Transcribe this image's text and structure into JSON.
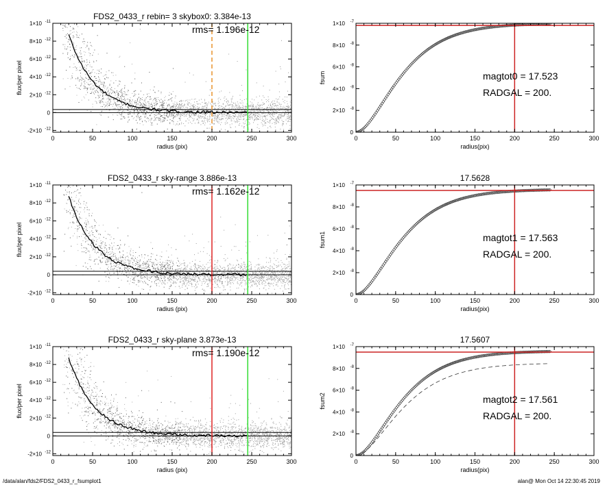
{
  "footer": {
    "path": "/data/alan/fds2/FDS2_0433_r_fsumplot1",
    "stamp": "alan@  Mon Oct 14 22:30:45 2019"
  },
  "chart_data": [
    {
      "type": "scatter",
      "title": "FDS2_0433_r rebin= 3    skybox0:  3.384e-13",
      "annotation": "rms= 1.196e-12",
      "xlabel": "radius (pix)",
      "ylabel": "flux/per pixel",
      "xlim": [
        0,
        300
      ],
      "ylim": [
        -2.2e-12,
        1e-11
      ],
      "xticks": [
        0,
        50,
        100,
        150,
        200,
        250,
        300
      ],
      "yticks": [
        {
          "v": 1e-11,
          "label": "1×10",
          "exp": "-11"
        },
        {
          "v": 8e-12,
          "label": "8×10",
          "exp": "-12"
        },
        {
          "v": 6e-12,
          "label": "6×10",
          "exp": "-12"
        },
        {
          "v": 4e-12,
          "label": "4×10",
          "exp": "-12"
        },
        {
          "v": 2e-12,
          "label": "2×10",
          "exp": "-12"
        },
        {
          "v": 0,
          "label": "0",
          "exp": ""
        },
        {
          "v": -2e-12,
          "label": "-2×10",
          "exp": "-12"
        }
      ],
      "profile_amplitude": 1.6e-11,
      "profile_scale": 33,
      "rms": 1.196e-12,
      "hlines": [
        0,
        3.384e-13
      ],
      "vlines": [
        {
          "x": 200,
          "color": "#e8922a",
          "dashed": true
        },
        {
          "x": 245,
          "color": "#33dd33",
          "dashed": false
        }
      ]
    },
    {
      "type": "line",
      "title": "",
      "text_lines": [
        "magtot0 =  17.523",
        "RADGAL =    200."
      ],
      "xlabel": "radius(pix)",
      "ylabel": "fsum",
      "xlim": [
        0,
        300
      ],
      "ylim": [
        0,
        1e-07
      ],
      "xticks": [
        0,
        50,
        100,
        150,
        200,
        250,
        300
      ],
      "yticks": [
        {
          "v": 1e-07,
          "label": "1×10",
          "exp": "-7"
        },
        {
          "v": 8e-08,
          "label": "8×10",
          "exp": "-8"
        },
        {
          "v": 6e-08,
          "label": "6×10",
          "exp": "-8"
        },
        {
          "v": 4e-08,
          "label": "4×10",
          "exp": "-8"
        },
        {
          "v": 2e-08,
          "label": "2×10",
          "exp": "-8"
        },
        {
          "v": 0,
          "label": "0",
          "exp": ""
        }
      ],
      "growth_max": 1e-07,
      "growth_scale": 33,
      "hline": 9.8e-08,
      "vline": 200,
      "dashed_max": null
    },
    {
      "type": "scatter",
      "title": "FDS2_0433_r sky-range  3.886e-13",
      "annotation": "rms= 1.162e-12",
      "xlabel": "radius (pix)",
      "ylabel": "flux/per pixel",
      "xlim": [
        0,
        300
      ],
      "ylim": [
        -2.2e-12,
        1e-11
      ],
      "xticks": [
        0,
        50,
        100,
        150,
        200,
        250,
        300
      ],
      "yticks": [
        {
          "v": 1e-11,
          "label": "1×10",
          "exp": "-11"
        },
        {
          "v": 8e-12,
          "label": "8×10",
          "exp": "-12"
        },
        {
          "v": 6e-12,
          "label": "6×10",
          "exp": "-12"
        },
        {
          "v": 4e-12,
          "label": "4×10",
          "exp": "-12"
        },
        {
          "v": 2e-12,
          "label": "2×10",
          "exp": "-12"
        },
        {
          "v": 0,
          "label": "0",
          "exp": ""
        },
        {
          "v": -2e-12,
          "label": "-2×10",
          "exp": "-12"
        }
      ],
      "profile_amplitude": 1.6e-11,
      "profile_scale": 33,
      "rms": 1.162e-12,
      "hlines": [
        0,
        3.886e-13
      ],
      "vlines": [
        {
          "x": 200,
          "color": "#dd2222",
          "dashed": false
        },
        {
          "x": 245,
          "color": "#33dd33",
          "dashed": false
        }
      ]
    },
    {
      "type": "line",
      "title": "17.5628",
      "text_lines": [
        "magtot1 =  17.563",
        "RADGAL =    200."
      ],
      "xlabel": "radius(pix)",
      "ylabel": "fsum1",
      "xlim": [
        0,
        300
      ],
      "ylim": [
        0,
        1e-07
      ],
      "xticks": [
        0,
        50,
        100,
        150,
        200,
        250,
        300
      ],
      "yticks": [
        {
          "v": 1e-07,
          "label": "1×10",
          "exp": "-7"
        },
        {
          "v": 8e-08,
          "label": "8×10",
          "exp": "-8"
        },
        {
          "v": 6e-08,
          "label": "6×10",
          "exp": "-8"
        },
        {
          "v": 4e-08,
          "label": "4×10",
          "exp": "-8"
        },
        {
          "v": 2e-08,
          "label": "2×10",
          "exp": "-8"
        },
        {
          "v": 0,
          "label": "0",
          "exp": ""
        }
      ],
      "growth_max": 9.6e-08,
      "growth_scale": 33,
      "hline": 9.5e-08,
      "vline": 200,
      "dashed_max": null
    },
    {
      "type": "scatter",
      "title": "FDS2_0433_r sky-plane  3.873e-13",
      "annotation": "rms= 1.190e-12",
      "xlabel": "radius (pix)",
      "ylabel": "flux/per pixel",
      "xlim": [
        0,
        300
      ],
      "ylim": [
        -2.2e-12,
        1e-11
      ],
      "xticks": [
        0,
        50,
        100,
        150,
        200,
        250,
        300
      ],
      "yticks": [
        {
          "v": 1e-11,
          "label": "1×10",
          "exp": "-11"
        },
        {
          "v": 8e-12,
          "label": "8×10",
          "exp": "-12"
        },
        {
          "v": 6e-12,
          "label": "6×10",
          "exp": "-12"
        },
        {
          "v": 4e-12,
          "label": "4×10",
          "exp": "-12"
        },
        {
          "v": 2e-12,
          "label": "2×10",
          "exp": "-12"
        },
        {
          "v": 0,
          "label": "0",
          "exp": ""
        },
        {
          "v": -2e-12,
          "label": "-2×10",
          "exp": "-12"
        }
      ],
      "profile_amplitude": 1.6e-11,
      "profile_scale": 33,
      "rms": 1.19e-12,
      "hlines": [
        0,
        3.873e-13
      ],
      "vlines": [
        {
          "x": 200,
          "color": "#dd2222",
          "dashed": false
        },
        {
          "x": 245,
          "color": "#33dd33",
          "dashed": false
        }
      ]
    },
    {
      "type": "line",
      "title": "17.5607",
      "text_lines": [
        "magtot2 =  17.561",
        "RADGAL =    200."
      ],
      "xlabel": "radius(pix)",
      "ylabel": "fsum2",
      "xlim": [
        0,
        300
      ],
      "ylim": [
        0,
        1e-07
      ],
      "xticks": [
        0,
        50,
        100,
        150,
        200,
        250,
        300
      ],
      "yticks": [
        {
          "v": 1e-07,
          "label": "1×10",
          "exp": "-7"
        },
        {
          "v": 8e-08,
          "label": "8×10",
          "exp": "-8"
        },
        {
          "v": 6e-08,
          "label": "6×10",
          "exp": "-8"
        },
        {
          "v": 4e-08,
          "label": "4×10",
          "exp": "-8"
        },
        {
          "v": 2e-08,
          "label": "2×10",
          "exp": "-8"
        },
        {
          "v": 0,
          "label": "0",
          "exp": ""
        }
      ],
      "growth_max": 9.6e-08,
      "growth_scale": 33,
      "hline": 9.5e-08,
      "vline": 200,
      "dashed_max": 8.5e-08
    }
  ]
}
